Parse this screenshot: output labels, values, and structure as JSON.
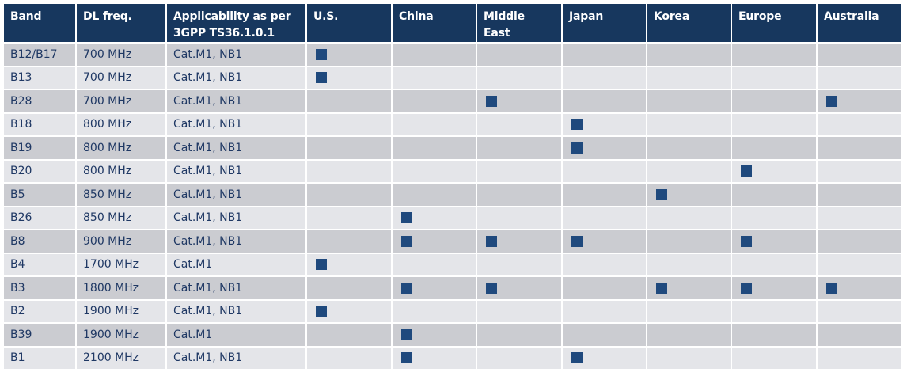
{
  "header": [
    "Band",
    "DL freq.",
    "Applicability as per\n3GPP TS36.1.0.1",
    "U.S.",
    "China",
    "Middle\nEast",
    "Japan",
    "Korea",
    "Europe",
    "Australia"
  ],
  "rows": [
    {
      "band": "B12/B17",
      "freq": "700 MHz",
      "applicability": "Cat.M1, NB1",
      "marks": [
        true,
        false,
        false,
        false,
        false,
        false,
        false
      ]
    },
    {
      "band": "B13",
      "freq": "700 MHz",
      "applicability": "Cat.M1, NB1",
      "marks": [
        true,
        false,
        false,
        false,
        false,
        false,
        false
      ]
    },
    {
      "band": "B28",
      "freq": "700 MHz",
      "applicability": "Cat.M1, NB1",
      "marks": [
        false,
        false,
        true,
        false,
        false,
        false,
        true
      ]
    },
    {
      "band": "B18",
      "freq": "800 MHz",
      "applicability": "Cat.M1, NB1",
      "marks": [
        false,
        false,
        false,
        true,
        false,
        false,
        false
      ]
    },
    {
      "band": "B19",
      "freq": "800 MHz",
      "applicability": "Cat.M1, NB1",
      "marks": [
        false,
        false,
        false,
        true,
        false,
        false,
        false
      ]
    },
    {
      "band": "B20",
      "freq": "800 MHz",
      "applicability": "Cat.M1, NB1",
      "marks": [
        false,
        false,
        false,
        false,
        false,
        true,
        false
      ]
    },
    {
      "band": "B5",
      "freq": "850 MHz",
      "applicability": "Cat.M1, NB1",
      "marks": [
        false,
        false,
        false,
        false,
        true,
        false,
        false
      ]
    },
    {
      "band": "B26",
      "freq": "850 MHz",
      "applicability": "Cat.M1, NB1",
      "marks": [
        false,
        true,
        false,
        false,
        false,
        false,
        false
      ]
    },
    {
      "band": "B8",
      "freq": "900 MHz",
      "applicability": "Cat.M1, NB1",
      "marks": [
        false,
        true,
        true,
        true,
        false,
        true,
        false
      ]
    },
    {
      "band": "B4",
      "freq": "1700 MHz",
      "applicability": "Cat.M1",
      "marks": [
        true,
        false,
        false,
        false,
        false,
        false,
        false
      ]
    },
    {
      "band": "B3",
      "freq": "1800 MHz",
      "applicability": "Cat.M1, NB1",
      "marks": [
        false,
        true,
        true,
        false,
        true,
        true,
        true
      ]
    },
    {
      "band": "B2",
      "freq": "1900 MHz",
      "applicability": "Cat.M1, NB1",
      "marks": [
        true,
        false,
        false,
        false,
        false,
        false,
        false
      ]
    },
    {
      "band": "B39",
      "freq": "1900 MHz",
      "applicability": "Cat.M1",
      "marks": [
        false,
        true,
        false,
        false,
        false,
        false,
        false
      ]
    },
    {
      "band": "B1",
      "freq": "2100 MHz",
      "applicability": "Cat.M1, NB1",
      "marks": [
        false,
        true,
        false,
        true,
        false,
        false,
        false
      ]
    }
  ]
}
